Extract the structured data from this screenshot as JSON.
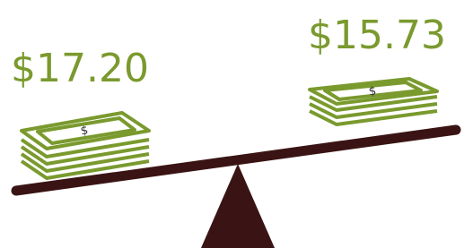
{
  "left": {
    "price": "$17.20",
    "bill_symbol": "$"
  },
  "right": {
    "price": "$15.73",
    "bill_symbol": "$"
  }
}
